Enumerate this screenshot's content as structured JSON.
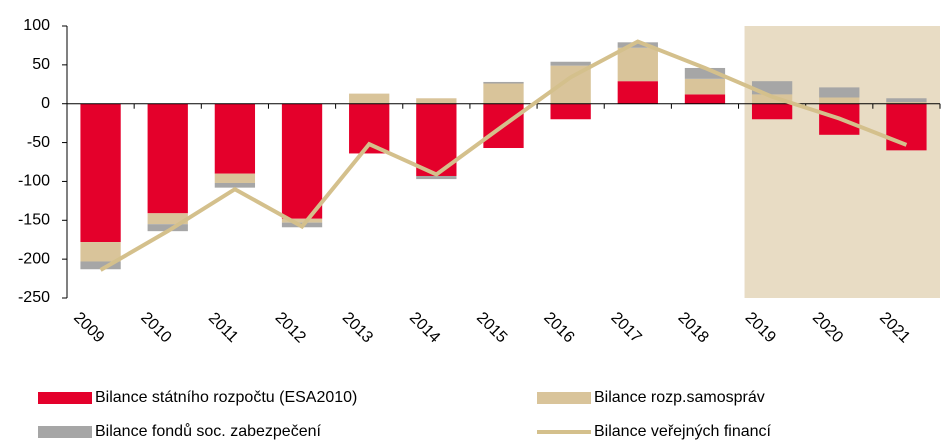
{
  "chart_data": {
    "type": "bar",
    "categories": [
      "2009",
      "2010",
      "2011",
      "2012",
      "2013",
      "2014",
      "2015",
      "2016",
      "2017",
      "2018",
      "2019",
      "2020",
      "2021"
    ],
    "series": [
      {
        "name": "Bilance státního rozpočtu (ESA2010)",
        "color": "#e4002b",
        "values": [
          -178,
          -141,
          -90,
          -148,
          -64,
          -93,
          -57,
          -20,
          29,
          12,
          -20,
          -40,
          -60
        ]
      },
      {
        "name": "Bilance rozp.samospráv",
        "color": "#d9c49a",
        "values": [
          -25,
          -14,
          -12,
          -5,
          13,
          7,
          26,
          49,
          43,
          20,
          12,
          8,
          2
        ]
      },
      {
        "name": "Bilance fondů soc. zabezpečení",
        "color": "#a6a6a6",
        "values": [
          -10,
          -9,
          -6,
          -6,
          0,
          -4,
          2,
          5,
          7,
          14,
          17,
          13,
          5
        ]
      },
      {
        "name": "Bilance veřejných financí",
        "type": "line",
        "color": "#d4c08c",
        "values": [
          -214,
          -164,
          -110,
          -158,
          -52,
          -91,
          -28,
          34,
          80,
          46,
          9,
          -19,
          -53
        ]
      }
    ],
    "ylim": [
      -250,
      100
    ],
    "yticks": [
      -250,
      -200,
      -150,
      -100,
      -50,
      0,
      50,
      100
    ],
    "shaded_region": {
      "start": 10,
      "color": "#e8dcc4"
    },
    "legend": "bottom"
  }
}
